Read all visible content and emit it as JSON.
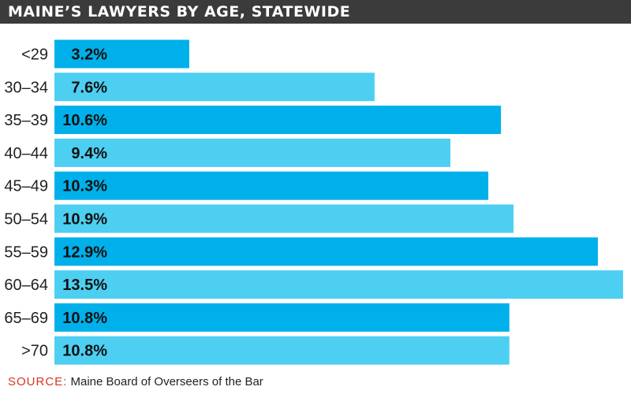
{
  "title": "MAINE’S LAWYERS BY AGE, STATEWIDE",
  "source": {
    "label": "SOURCE:",
    "text": "Maine Board of Overseers of the Bar"
  },
  "colors": {
    "title_bg": "#3b3b3b",
    "bar_dark": "#00b0ea",
    "bar_light": "#4dcff2",
    "source_label": "#d9341e"
  },
  "chart_data": {
    "type": "bar",
    "orientation": "horizontal",
    "categories": [
      "<29",
      "30–34",
      "35–39",
      "40–44",
      "45–49",
      "50–54",
      "55–59",
      "60–64",
      "65–69",
      ">70"
    ],
    "values": [
      3.2,
      7.6,
      10.6,
      9.4,
      10.3,
      10.9,
      12.9,
      13.5,
      10.8,
      10.8
    ],
    "value_labels": [
      "3.2%",
      "7.6%",
      "10.6%",
      "9.4%",
      "10.3%",
      "10.9%",
      "12.9%",
      "13.5%",
      "10.8%",
      "10.8%"
    ],
    "title": "MAINE’S LAWYERS BY AGE, STATEWIDE",
    "xlabel": "",
    "ylabel": "",
    "xlim": [
      0,
      13.5
    ],
    "grid": false,
    "legend": "none"
  }
}
